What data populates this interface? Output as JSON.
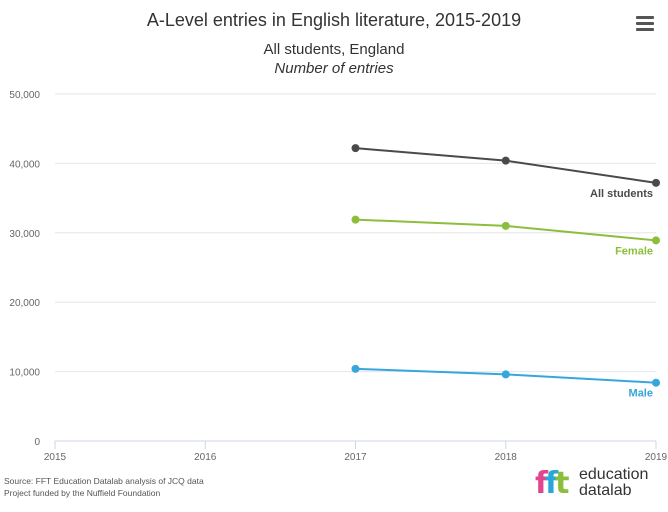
{
  "header": {
    "title": "A-Level entries in English literature, 2015-2019",
    "subtitle_line1": "All students, England",
    "subtitle_line2": "Number of entries",
    "menu_icon": "hamburger-menu-icon"
  },
  "chart_data": {
    "type": "line",
    "title": "A-Level entries in English literature, 2015-2019",
    "subtitle": "All students, England",
    "ylabel": "Number of entries",
    "xlabel": "",
    "x": [
      2015,
      2016,
      2017,
      2018,
      2019
    ],
    "x_tick_labels": [
      "2015",
      "2016",
      "2017",
      "2018",
      "2019"
    ],
    "ylim": [
      0,
      50000
    ],
    "y_ticks": [
      0,
      10000,
      20000,
      30000,
      40000,
      50000
    ],
    "y_tick_labels": [
      "0",
      "10,000",
      "20,000",
      "30,000",
      "40,000",
      "50,000"
    ],
    "grid": "horizontal",
    "series": [
      {
        "name": "All students",
        "color": "#4a4a4a",
        "x": [
          2017,
          2018,
          2019
        ],
        "values": [
          42200,
          40400,
          37200
        ]
      },
      {
        "name": "Female",
        "color": "#8cbe3c",
        "x": [
          2017,
          2018,
          2019
        ],
        "values": [
          31900,
          31000,
          28900
        ]
      },
      {
        "name": "Male",
        "color": "#36a6dc",
        "x": [
          2017,
          2018,
          2019
        ],
        "values": [
          10400,
          9600,
          8400
        ]
      }
    ]
  },
  "footer": {
    "source_line1": "Source: FFT Education Datalab analysis of JCQ data",
    "source_line2": "Project funded by the Nuffield Foundation",
    "logo_mark": "fft",
    "logo_word1": "education",
    "logo_word2": "datalab"
  }
}
